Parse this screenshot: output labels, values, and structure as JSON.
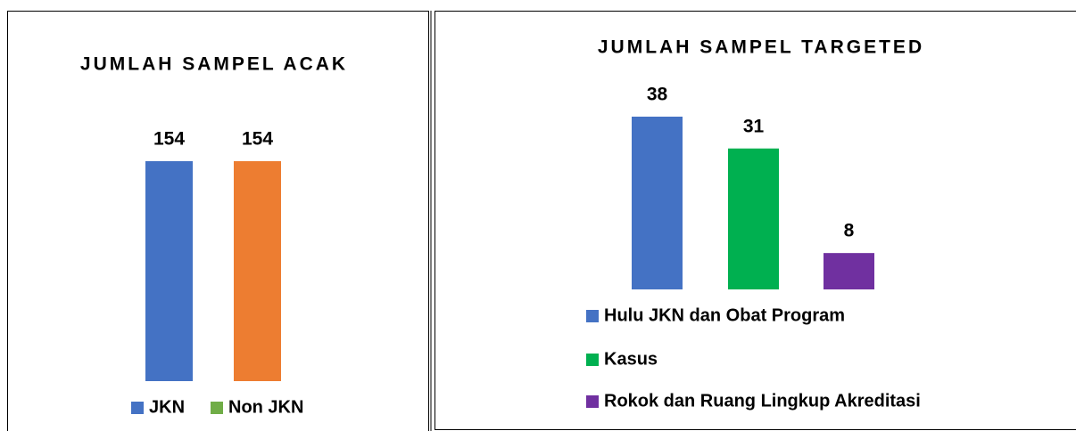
{
  "chart_data": [
    {
      "type": "bar",
      "title": "JUMLAH SAMPEL ACAK",
      "series": [
        {
          "name": "JKN",
          "color": "#4472c4",
          "legend_color": "#4472c4",
          "values": [
            154
          ]
        },
        {
          "name": "Non JKN",
          "color": "#ed7d31",
          "legend_color": "#70ad47",
          "values": [
            154
          ]
        }
      ],
      "legend": "bottom"
    },
    {
      "type": "bar",
      "title": "JUMLAH SAMPEL TARGETED",
      "series": [
        {
          "name": "Hulu JKN dan Obat Program",
          "color": "#4472c4",
          "values": [
            38
          ]
        },
        {
          "name": "Kasus",
          "color": "#00b050",
          "values": [
            31
          ]
        },
        {
          "name": "Rokok dan Ruang Lingkup Akreditasi",
          "color": "#7030a0",
          "values": [
            8
          ]
        }
      ],
      "legend": "bottom-left"
    }
  ]
}
